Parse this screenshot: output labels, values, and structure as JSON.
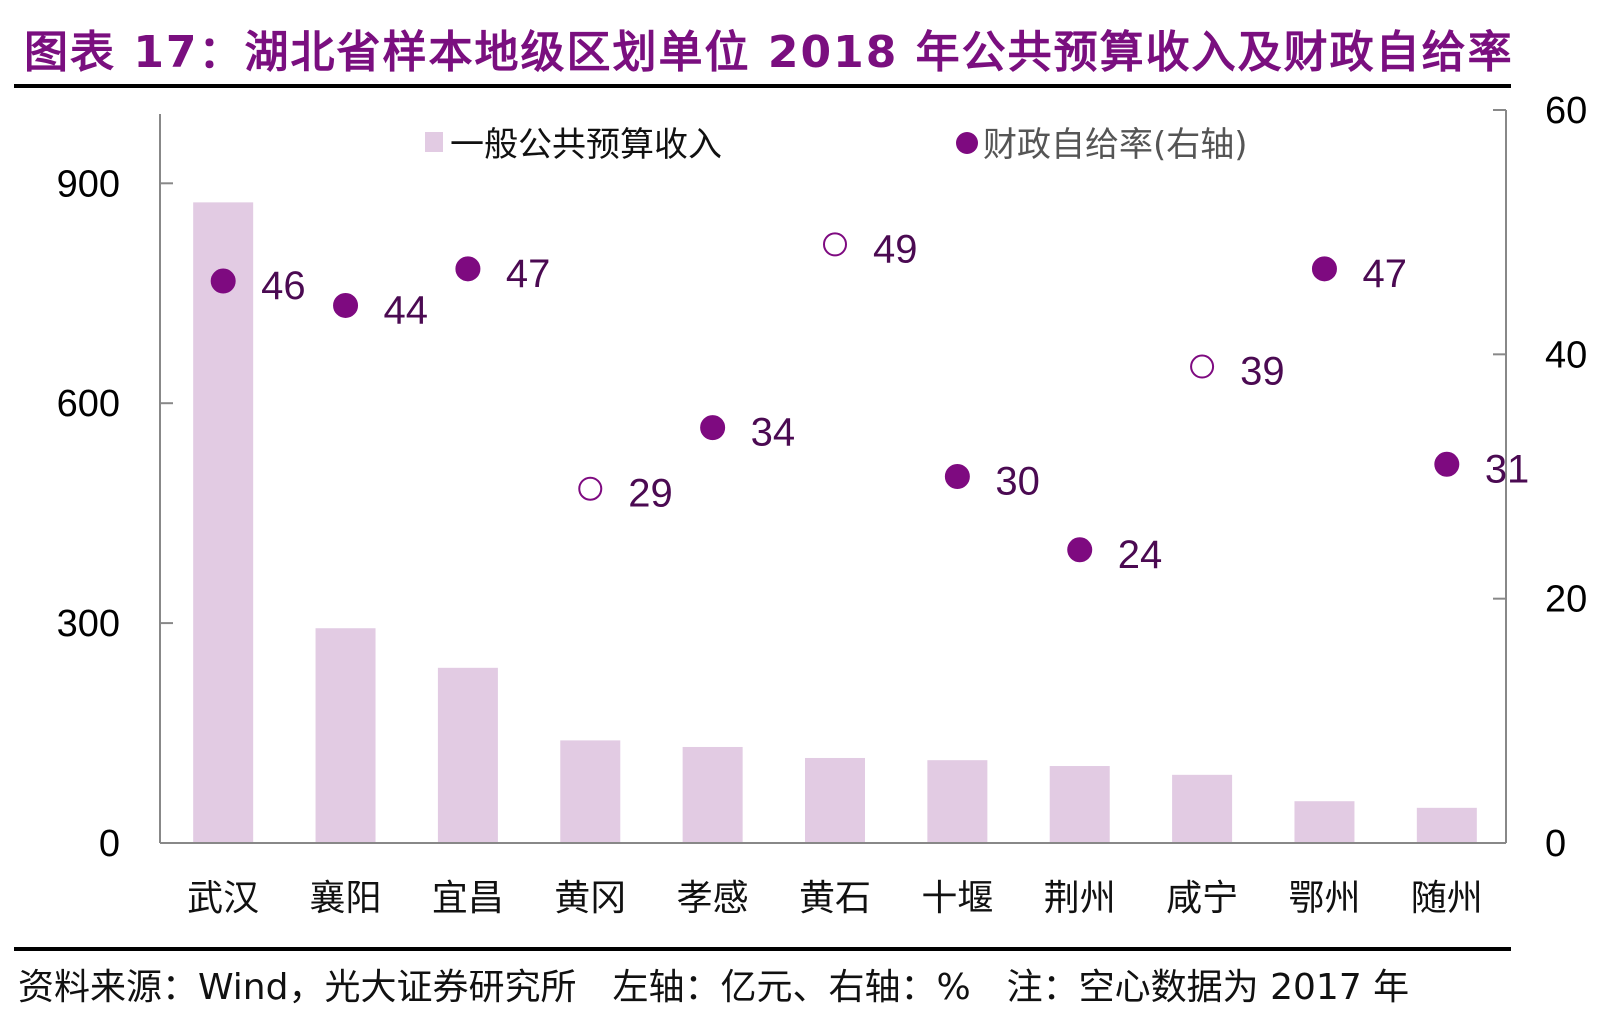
{
  "header": {
    "title": "图表 17：湖北省样本地级区划单位 2018 年公共预算收入及财政自给率"
  },
  "footer": {
    "source": "资料来源：Wind，光大证券研究所　左轴：亿元、右轴：%　注：空心数据为 2017 年"
  },
  "colors": {
    "bar": "#e2cbe3",
    "marker": "#7e0a80",
    "label": "#4b0a52",
    "axis": "#888888",
    "title": "#7a0f7f"
  },
  "chart_data": {
    "type": "bar",
    "title": "湖北省样本地级区划单位 2018 年公共预算收入及财政自给率",
    "categories": [
      "武汉",
      "襄阳",
      "宜昌",
      "黄冈",
      "孝感",
      "黄石",
      "十堰",
      "荆州",
      "咸宁",
      "鄂州",
      "随州"
    ],
    "series": [
      {
        "name": "一般公共预算收入",
        "type": "bar",
        "axis": "left",
        "values": [
          874,
          293,
          239,
          140,
          131,
          116,
          113,
          105,
          93,
          57,
          48
        ]
      },
      {
        "name": "财政自给率(右轴)",
        "type": "scatter",
        "axis": "right",
        "values": [
          46,
          44,
          47,
          29,
          34,
          49,
          30,
          24,
          39,
          47,
          31
        ],
        "hollow_2017": [
          false,
          false,
          false,
          true,
          false,
          true,
          false,
          false,
          true,
          false,
          false
        ],
        "labels": [
          "46",
          "44",
          "47",
          "29",
          "34",
          "49",
          "30",
          "24",
          "39",
          "47",
          "31"
        ]
      }
    ],
    "left_axis": {
      "ylim": [
        0,
        1000
      ],
      "ticks": [
        "0",
        "300",
        "600",
        "900"
      ],
      "tick_values": [
        0,
        300,
        600,
        900
      ],
      "unit": "亿元"
    },
    "right_axis": {
      "ylim": [
        0,
        60
      ],
      "ticks": [
        "0",
        "20",
        "40",
        "60"
      ],
      "tick_values": [
        0,
        20,
        40,
        60
      ],
      "unit": "%"
    },
    "legend": {
      "position": "top-center",
      "items": [
        "一般公共预算收入",
        "财政自给率(右轴)"
      ]
    },
    "grid": false,
    "note": "空心数据为 2017 年"
  }
}
